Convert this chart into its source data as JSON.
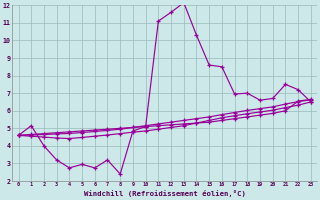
{
  "xlabel": "Windchill (Refroidissement éolien,°C)",
  "bg_color": "#cce8e8",
  "line_color": "#990099",
  "grid_color": "#99bbbb",
  "xlim_min": -0.5,
  "xlim_max": 23.5,
  "ylim_min": 2,
  "ylim_max": 12,
  "xtick_labels": [
    "0",
    "1",
    "2",
    "3",
    "4",
    "5",
    "6",
    "7",
    "8",
    "9",
    "10",
    "11",
    "12",
    "13",
    "14",
    "15",
    "16",
    "17",
    "18",
    "19",
    "20",
    "21",
    "22",
    "23"
  ],
  "ytick_labels": [
    "2",
    "3",
    "4",
    "5",
    "6",
    "7",
    "8",
    "9",
    "10",
    "11",
    "12"
  ],
  "series_main": [
    4.6,
    5.15,
    4.0,
    3.2,
    2.75,
    2.95,
    2.75,
    3.2,
    2.4,
    4.85,
    5.1,
    11.1,
    11.6,
    12.15,
    10.3,
    8.6,
    8.5,
    6.95,
    7.0,
    6.6,
    6.7,
    7.5,
    7.2,
    6.5
  ],
  "series_lin1": [
    4.6,
    4.65,
    4.7,
    4.75,
    4.8,
    4.85,
    4.9,
    4.95,
    5.0,
    5.05,
    5.1,
    5.15,
    5.2,
    5.25,
    5.3,
    5.35,
    5.45,
    5.55,
    5.65,
    5.75,
    5.85,
    6.0,
    6.55,
    6.65
  ],
  "series_lin2": [
    4.6,
    4.62,
    4.65,
    4.68,
    4.71,
    4.76,
    4.82,
    4.88,
    4.95,
    5.05,
    5.15,
    5.25,
    5.35,
    5.45,
    5.55,
    5.65,
    5.78,
    5.9,
    6.02,
    6.12,
    6.22,
    6.38,
    6.52,
    6.62
  ],
  "series_lin3": [
    4.6,
    4.55,
    4.5,
    4.45,
    4.42,
    4.48,
    4.55,
    4.62,
    4.7,
    4.78,
    4.85,
    4.95,
    5.05,
    5.15,
    5.3,
    5.45,
    5.6,
    5.72,
    5.83,
    5.93,
    6.03,
    6.18,
    6.32,
    6.5
  ]
}
